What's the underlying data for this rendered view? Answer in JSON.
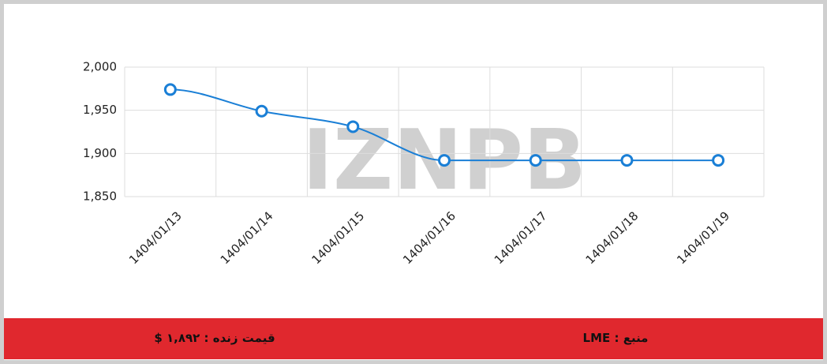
{
  "chart_data": {
    "type": "line",
    "categories": [
      "1404/01/13",
      "1404/01/14",
      "1404/01/15",
      "1404/01/16",
      "1404/01/17",
      "1404/01/18",
      "1404/01/19"
    ],
    "series": [
      {
        "name": null,
        "color": "#1a7fd6",
        "values": [
          1974,
          1949,
          1931,
          1892,
          1892,
          1892,
          1892
        ]
      }
    ],
    "ylim": [
      1850,
      2000
    ],
    "yticks": [
      {
        "value": 1850,
        "label": "1,850"
      },
      {
        "value": 1900,
        "label": "1,900"
      },
      {
        "value": 1950,
        "label": "1,950"
      },
      {
        "value": 2000,
        "label": "2,000"
      }
    ],
    "grid": true,
    "watermark": "IZNPB"
  },
  "footer": {
    "live_price": "قیمت زنده : ۱,۸۹۲ $",
    "source": "منبع : LME"
  }
}
